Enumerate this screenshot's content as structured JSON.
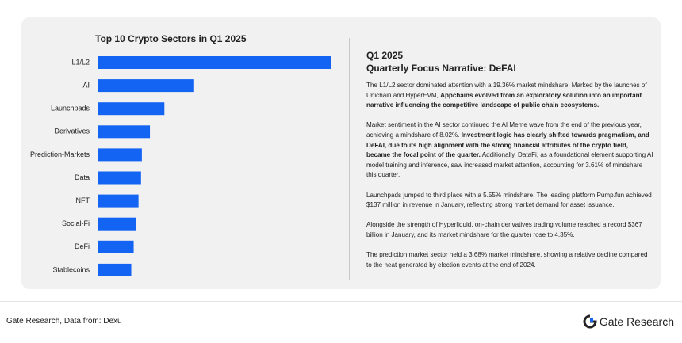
{
  "chart_data": {
    "type": "bar",
    "orientation": "horizontal",
    "title": "Top 10 Crypto Sectors in Q1 2025",
    "categories": [
      "L1/L2",
      "AI",
      "Launchpads",
      "Derivatives",
      "Prediction-Markets",
      "Data",
      "NFT",
      "Social-Fi",
      "DeFi",
      "Stablecoins"
    ],
    "values": [
      19.36,
      8.02,
      5.55,
      4.35,
      3.68,
      3.61,
      3.4,
      3.2,
      3.0,
      2.8
    ],
    "color": "#1464f4"
  },
  "narrative": {
    "period": "Q1 2025",
    "title": "Quarterly Focus Narrative: DeFAI",
    "paragraphs": [
      [
        {
          "text": "The L1/L2 sector dominated attention with a 19.36% market mindshare. Marked by the launches of Unichain and HyperEVM, ",
          "bold": false
        },
        {
          "text": "Appchains evolved from an exploratory solution into an important narrative influencing the competitive landscape of public chain ecosystems.",
          "bold": true
        }
      ],
      [
        {
          "text": "Market sentiment in the AI sector continued the AI Meme wave from the end of the previous year, achieving a mindshare of 8.02%. ",
          "bold": false
        },
        {
          "text": "Investment logic has clearly shifted towards pragmatism, and DeFAI, due to its high alignment with the strong financial attributes of the crypto field, became the focal point of the quarter.",
          "bold": true
        },
        {
          "text": " Additionally, DataFi, as a foundational element supporting AI model training and inference, saw increased market attention, accounting for 3.61% of mindshare this quarter.",
          "bold": false
        }
      ],
      [
        {
          "text": "Launchpads jumped to third place with a 5.55% mindshare. The leading platform Pump.fun achieved $137 million in revenue in January, reflecting strong market demand for asset issuance.",
          "bold": false
        }
      ],
      [
        {
          "text": "Alongside the strength of Hyperliquid, on-chain derivatives trading volume reached a record $367 billion in January, and its market mindshare for the quarter rose to 4.35%.",
          "bold": false
        }
      ],
      [
        {
          "text": "The prediction market sector held a 3.68% market mindshare, showing a relative decline compared to the heat generated by election events at the end of 2024.",
          "bold": false
        }
      ]
    ]
  },
  "footer": {
    "source": "Gate Research, Data from: Dexu",
    "brand": "Gate Research"
  }
}
